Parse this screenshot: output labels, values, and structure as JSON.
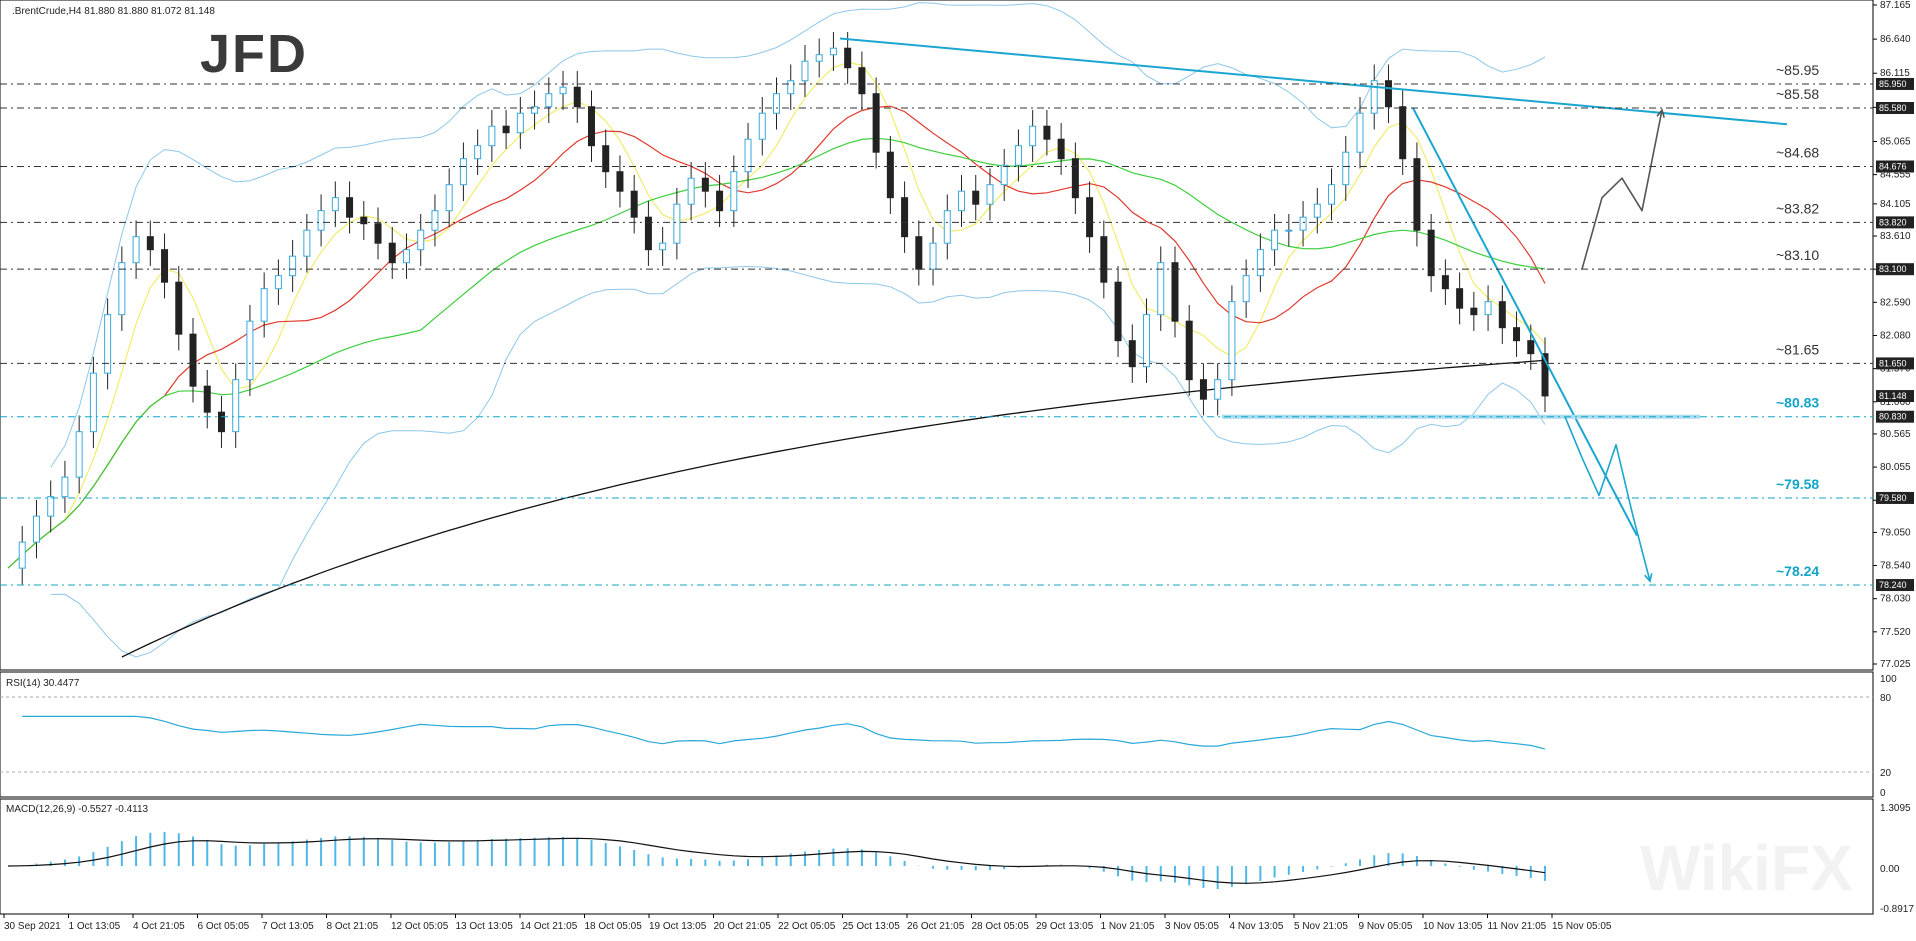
{
  "header": {
    "symbol_info": ".BrentCrude,H4  81.880 81.880 81.072 81.148",
    "logo": "JFD",
    "watermark": "WikiFX"
  },
  "indicators": {
    "rsi_label": "RSI(14) 30.4477",
    "rsi_levels": [
      "100",
      "80",
      "20",
      "0"
    ],
    "macd_label": "MACD(12,26,9) -0.5527 -0.4113",
    "macd_levels": [
      "1.3095",
      "0.00",
      "-0.8917"
    ]
  },
  "colors": {
    "resistance": "#333333",
    "support": "#12a5c9",
    "trendline": "#1aa6d0",
    "bollinger": "#8ec7ea",
    "sma_fast": "#f2ec6b",
    "sma_mid": "#e03a2e",
    "sma_slow": "#3ccf3c",
    "sma_long": "#111111"
  },
  "chart_data": {
    "type": "line",
    "instrument": ".BrentCrude",
    "timeframe": "H4",
    "ohlc": {
      "open": 81.88,
      "high": 81.88,
      "low": 81.072,
      "close": 81.148
    },
    "ylim": [
      77.025,
      87.165
    ],
    "price_scale": [
      "87.165",
      "86.640",
      "86.115",
      "85.590",
      "85.065",
      "84.555",
      "84.105",
      "83.610",
      "83.100",
      "82.590",
      "82.080",
      "81.570",
      "81.060",
      "80.565",
      "80.055",
      "79.545",
      "79.050",
      "78.540",
      "78.030",
      "77.520",
      "77.025"
    ],
    "x_labels": [
      "30 Sep 2021",
      "1 Oct 13:05",
      "4 Oct 21:05",
      "6 Oct 05:05",
      "7 Oct 13:05",
      "8 Oct 21:05",
      "12 Oct 05:05",
      "13 Oct 13:05",
      "14 Oct 21:05",
      "18 Oct 05:05",
      "19 Oct 13:05",
      "20 Oct 21:05",
      "22 Oct 05:05",
      "25 Oct 13:05",
      "26 Oct 21:05",
      "28 Oct 05:05",
      "29 Oct 13:05",
      "1 Nov 21:05",
      "3 Nov 05:05",
      "4 Nov 13:05",
      "5 Nov 21:05",
      "9 Nov 05:05",
      "10 Nov 13:05",
      "11 Nov 21:05",
      "15 Nov 05:05"
    ],
    "levels": [
      {
        "label": "~85.95",
        "value": 85.95,
        "box": "85.950",
        "type": "resistance"
      },
      {
        "label": "~85.58",
        "value": 85.58,
        "box": "85.580",
        "type": "resistance"
      },
      {
        "label": "~84.68",
        "value": 84.68,
        "box": "84.676",
        "type": "resistance"
      },
      {
        "label": "~83.82",
        "value": 83.82,
        "box": "83.820",
        "type": "resistance"
      },
      {
        "label": "~83.10",
        "value": 83.1,
        "box": "83.100",
        "type": "resistance"
      },
      {
        "label": "~81.65",
        "value": 81.65,
        "box": "81.650",
        "type": "resistance"
      },
      {
        "label": "~80.83",
        "value": 80.83,
        "box": "80.830",
        "type": "support"
      },
      {
        "label": "~79.58",
        "value": 79.58,
        "box": "79.580",
        "type": "support"
      },
      {
        "label": "~78.24",
        "value": 78.24,
        "box": "78.240",
        "type": "support"
      }
    ],
    "last_price_box": "81.148",
    "close_series": [
      78.5,
      78.9,
      79.3,
      79.6,
      79.9,
      80.6,
      81.5,
      82.4,
      83.2,
      83.6,
      83.4,
      82.9,
      82.1,
      81.3,
      80.9,
      80.6,
      81.4,
      82.3,
      82.8,
      83.0,
      83.3,
      83.7,
      84.0,
      84.2,
      83.9,
      83.8,
      83.5,
      83.2,
      83.4,
      83.7,
      84.0,
      84.4,
      84.8,
      85.0,
      85.3,
      85.2,
      85.5,
      85.6,
      85.8,
      85.9,
      85.6,
      85.0,
      84.6,
      84.3,
      83.9,
      83.4,
      83.5,
      84.1,
      84.5,
      84.3,
      84.0,
      84.6,
      85.1,
      85.5,
      85.8,
      86.0,
      86.3,
      86.4,
      86.5,
      86.2,
      85.8,
      84.9,
      84.2,
      83.6,
      83.1,
      83.5,
      84.0,
      84.3,
      84.1,
      84.4,
      84.7,
      85.0,
      85.3,
      85.1,
      84.8,
      84.2,
      83.6,
      82.9,
      82.0,
      81.6,
      82.4,
      83.2,
      82.3,
      81.4,
      81.1,
      81.4,
      82.6,
      83.0,
      83.4,
      83.7,
      83.7,
      83.9,
      84.1,
      84.4,
      84.9,
      85.5,
      86.0,
      85.6,
      84.8,
      83.7,
      83.0,
      82.8,
      82.5,
      82.4,
      82.6,
      82.2,
      82.0,
      81.8,
      81.15
    ],
    "projection_up": [
      83.1,
      84.2,
      84.5,
      84.0,
      85.55
    ],
    "projection_down": [
      80.83,
      80.2,
      79.62,
      80.4,
      79.3,
      78.3
    ]
  }
}
